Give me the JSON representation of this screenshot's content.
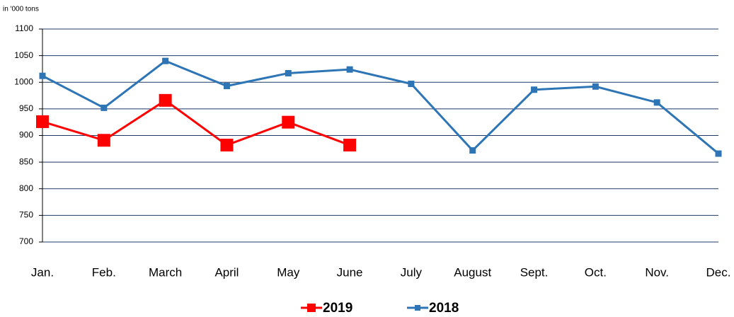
{
  "chart_data": {
    "type": "line",
    "y_label": "in '000 tons",
    "categories": [
      "Jan.",
      "Feb.",
      "March",
      "April",
      "May",
      "June",
      "July",
      "August",
      "Sept.",
      "Oct.",
      "Nov.",
      "Dec."
    ],
    "series": [
      {
        "name": "2019",
        "color": "#ff0000",
        "values": [
          926,
          891,
          966,
          882,
          925,
          882,
          null,
          null,
          null,
          null,
          null,
          null
        ]
      },
      {
        "name": "2018",
        "color": "#2e75b6",
        "values": [
          1012,
          952,
          1040,
          993,
          1017,
          1024,
          997,
          872,
          986,
          992,
          962,
          866
        ]
      }
    ],
    "ylim": [
      700,
      1100
    ],
    "yticks": [
      700,
      750,
      800,
      850,
      900,
      950,
      1000,
      1050,
      1100
    ],
    "grid": true,
    "legend": "bottom"
  }
}
